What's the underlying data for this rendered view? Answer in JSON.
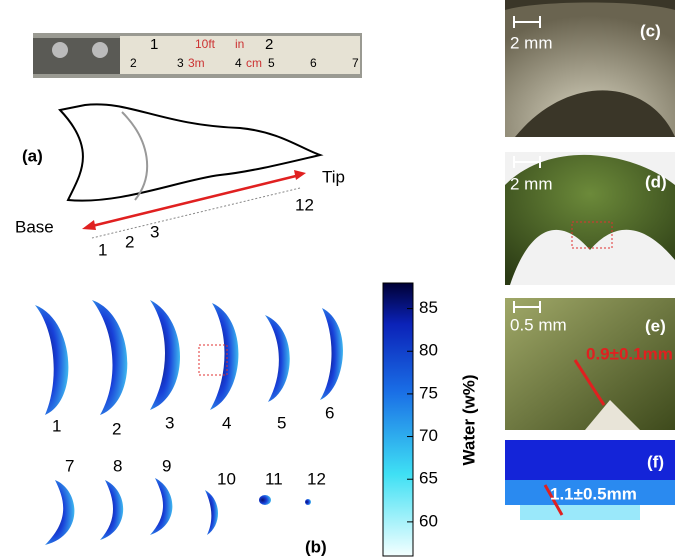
{
  "panels": {
    "a": "(a)",
    "b": "(b)",
    "c": "(c)",
    "d": "(d)",
    "e": "(e)",
    "f": "(f)"
  },
  "ruler": {
    "texts": [
      "1",
      "2",
      "3",
      "4",
      "5",
      "6",
      "7",
      "10ft",
      "in",
      "3m",
      "cm"
    ]
  },
  "leaf": {
    "base": "Base",
    "tip": "Tip",
    "positions": [
      "1",
      "2",
      "3",
      "12"
    ]
  },
  "slices": {
    "labels": [
      "1",
      "2",
      "3",
      "4",
      "5",
      "6",
      "7",
      "8",
      "9",
      "10",
      "11",
      "12"
    ]
  },
  "colorbar": {
    "label": "Water (w%)",
    "range": [
      56,
      88
    ],
    "ticks": [
      60,
      65,
      70,
      75,
      80,
      85
    ]
  },
  "photos": {
    "c_scale": "2 mm",
    "d_scale": "2 mm",
    "e_scale": "0.5 mm",
    "e_measure": "0.9±0.1mm",
    "f_measure": "1.1±0.5mm"
  }
}
